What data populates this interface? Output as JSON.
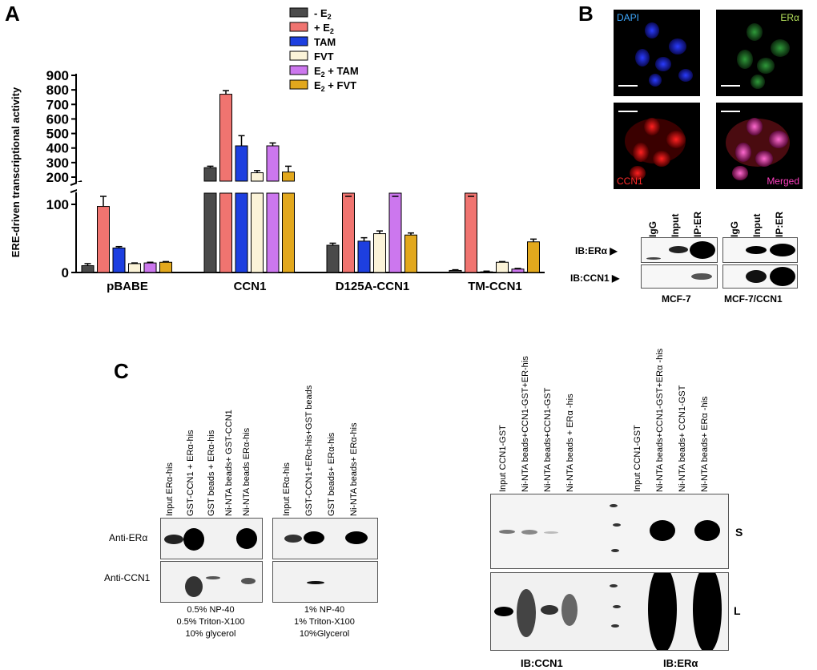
{
  "panels": {
    "a": "A",
    "b": "B",
    "c": "C"
  },
  "chart_data": {
    "type": "bar",
    "ylabel": "ERE-driven transcriptional activity",
    "broken_axis": true,
    "lower_ylim": [
      0,
      100
    ],
    "upper_ylim": [
      200,
      900
    ],
    "yticks_lower": [
      "0",
      "100"
    ],
    "yticks_upper": [
      "200",
      "300",
      "400",
      "500",
      "600",
      "700",
      "800",
      "900"
    ],
    "categories": [
      "pBABE",
      "CCN1",
      "D125A-CCN1",
      "TM-CCN1"
    ],
    "legend": [
      {
        "label": "- E",
        "sub": "2",
        "suffix": "",
        "color": "#4a4a4a"
      },
      {
        "label": "+ E",
        "sub": "2",
        "suffix": "",
        "color": "#f07470"
      },
      {
        "label": "TAM",
        "sub": "",
        "suffix": "",
        "color": "#1d3fe0"
      },
      {
        "label": "FVT",
        "sub": "",
        "suffix": "",
        "color": "#fbf3d8"
      },
      {
        "label": "E",
        "sub": "2",
        "suffix": " + TAM",
        "color": "#cc77ee"
      },
      {
        "label": "E",
        "sub": "2",
        "suffix": " + FVT",
        "color": "#e2a81d"
      }
    ],
    "series": [
      {
        "name": "- E2",
        "values": [
          10,
          265,
          40,
          3
        ],
        "errors": [
          3,
          10,
          3,
          1
        ]
      },
      {
        "name": "+ E2",
        "values": [
          97,
          770,
          170,
          170
        ],
        "errors": [
          8,
          25,
          15,
          15
        ]
      },
      {
        "name": "TAM",
        "values": [
          36,
          415,
          46,
          1
        ],
        "errors": [
          2,
          70,
          5,
          1
        ]
      },
      {
        "name": "FVT",
        "values": [
          13,
          230,
          57,
          15
        ],
        "errors": [
          1,
          15,
          4,
          1
        ]
      },
      {
        "name": "E2 + TAM",
        "values": [
          14,
          415,
          104,
          5
        ],
        "errors": [
          1,
          20,
          3,
          1
        ]
      },
      {
        "name": "E2 + FVT",
        "values": [
          15,
          235,
          55,
          45
        ],
        "errors": [
          1,
          40,
          3,
          4
        ]
      }
    ]
  },
  "panel_b": {
    "micro_labels": {
      "dapi": "DAPI",
      "er": "ERα",
      "ccn1": "CCN1",
      "merged": "Merged"
    },
    "ip_lanes": [
      "IgG",
      "Input",
      "IP:ER"
    ],
    "ib_rows": [
      "IB:ERα",
      "IB:CCN1"
    ],
    "cell_lines": [
      "MCF-7",
      "MCF-7/CCN1"
    ]
  },
  "panel_c": {
    "left_lanes_1": [
      "Input ERα-his",
      "GST-CCN1 + ERα-his",
      "GST beads + ERα-his",
      "Ni-NTA beads+ GST-CCN1",
      "Ni-NTA beads ERα-his"
    ],
    "left_lanes_2": [
      "Input ERα-his",
      "GST-CCN1+ERα-his+GST beads",
      "GST beads+ ERα-his",
      "Ni-NTA beads+ ERα-his"
    ],
    "left_rows": [
      "Anti-ERα",
      "Anti-CCN1"
    ],
    "conditions_1": [
      "0.5% NP-40",
      "0.5% Triton-X100",
      "10% glycerol"
    ],
    "conditions_2": [
      "1% NP-40",
      "1% Triton-X100",
      "10%Glycerol"
    ],
    "right_lanes_1": [
      "Input CCN1-GST",
      "Ni-NTA beads+CCN1-GST+ER-his",
      "Ni-NTA beads+CCN1-GST",
      "Ni-NTA beads + ERα -his"
    ],
    "right_lanes_2": [
      "Input CCN1-GST",
      "Ni-NTA beads+CCN1-GST+ERα -his",
      "Ni-NTA beads+ CCN1-GST",
      "Ni-NTA beads+ ERα -his"
    ],
    "right_rows": [
      "S",
      "L"
    ],
    "right_blots": [
      "IB:CCN1",
      "IB:ERα"
    ]
  }
}
